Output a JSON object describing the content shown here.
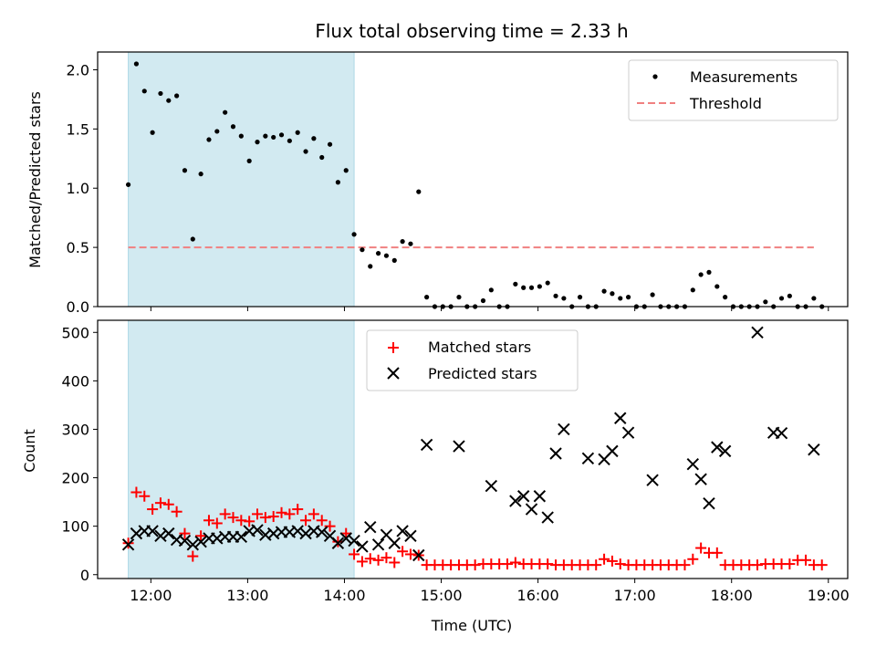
{
  "chart_data": [
    {
      "type": "scatter",
      "title": "Flux total observing time = 2.33 h",
      "xlabel": "",
      "ylabel": "Matched/Predicted stars",
      "xlim": [
        "11:27",
        "19:12"
      ],
      "ylim": [
        0,
        2.15
      ],
      "yticks": [
        0.0,
        0.5,
        1.0,
        1.5,
        2.0
      ],
      "ytick_labels": [
        "0.0",
        "0.5",
        "1.0",
        "1.5",
        "2.0"
      ],
      "shaded_interval": {
        "start": "11:46",
        "end": "14:06",
        "color": "#add8e6"
      },
      "legend": {
        "location": "upper right",
        "entries": [
          "Measurements",
          "Threshold"
        ]
      },
      "threshold": {
        "name": "Threshold",
        "value": 0.5,
        "x_range": [
          "11:46",
          "18:51"
        ],
        "color": "#f08080",
        "style": "dashed"
      },
      "series": [
        {
          "name": "Measurements",
          "color": "#000000",
          "points": [
            [
              "11:46",
              1.03
            ],
            [
              "11:51",
              2.05
            ],
            [
              "11:56",
              1.82
            ],
            [
              "12:01",
              1.47
            ],
            [
              "12:06",
              1.8
            ],
            [
              "12:11",
              1.74
            ],
            [
              "12:16",
              1.78
            ],
            [
              "12:21",
              1.15
            ],
            [
              "12:26",
              0.57
            ],
            [
              "12:31",
              1.12
            ],
            [
              "12:36",
              1.41
            ],
            [
              "12:41",
              1.48
            ],
            [
              "12:46",
              1.64
            ],
            [
              "12:51",
              1.52
            ],
            [
              "12:56",
              1.44
            ],
            [
              "13:01",
              1.23
            ],
            [
              "13:06",
              1.39
            ],
            [
              "13:11",
              1.44
            ],
            [
              "13:16",
              1.43
            ],
            [
              "13:21",
              1.45
            ],
            [
              "13:26",
              1.4
            ],
            [
              "13:31",
              1.47
            ],
            [
              "13:36",
              1.31
            ],
            [
              "13:41",
              1.42
            ],
            [
              "13:46",
              1.26
            ],
            [
              "13:51",
              1.37
            ],
            [
              "13:56",
              1.05
            ],
            [
              "14:01",
              1.15
            ],
            [
              "14:06",
              0.61
            ],
            [
              "14:11",
              0.48
            ],
            [
              "14:16",
              0.34
            ],
            [
              "14:21",
              0.45
            ],
            [
              "14:26",
              0.43
            ],
            [
              "14:31",
              0.39
            ],
            [
              "14:36",
              0.55
            ],
            [
              "14:41",
              0.53
            ],
            [
              "14:46",
              0.97
            ],
            [
              "14:51",
              0.08
            ],
            [
              "14:56",
              0.0
            ],
            [
              "15:01",
              0.0
            ],
            [
              "15:06",
              0.0
            ],
            [
              "15:11",
              0.08
            ],
            [
              "15:16",
              0.0
            ],
            [
              "15:21",
              0.0
            ],
            [
              "15:26",
              0.05
            ],
            [
              "15:31",
              0.14
            ],
            [
              "15:36",
              0.0
            ],
            [
              "15:41",
              0.0
            ],
            [
              "15:46",
              0.19
            ],
            [
              "15:51",
              0.16
            ],
            [
              "15:56",
              0.16
            ],
            [
              "16:01",
              0.17
            ],
            [
              "16:06",
              0.2
            ],
            [
              "16:11",
              0.09
            ],
            [
              "16:16",
              0.07
            ],
            [
              "16:21",
              0.0
            ],
            [
              "16:26",
              0.08
            ],
            [
              "16:31",
              0.0
            ],
            [
              "16:36",
              0.0
            ],
            [
              "16:41",
              0.13
            ],
            [
              "16:46",
              0.11
            ],
            [
              "16:51",
              0.07
            ],
            [
              "16:56",
              0.08
            ],
            [
              "17:01",
              0.0
            ],
            [
              "17:06",
              0.0
            ],
            [
              "17:11",
              0.1
            ],
            [
              "17:16",
              0.0
            ],
            [
              "17:21",
              0.0
            ],
            [
              "17:26",
              0.0
            ],
            [
              "17:31",
              0.0
            ],
            [
              "17:36",
              0.14
            ],
            [
              "17:41",
              0.27
            ],
            [
              "17:46",
              0.29
            ],
            [
              "17:51",
              0.17
            ],
            [
              "17:56",
              0.08
            ],
            [
              "18:01",
              0.0
            ],
            [
              "18:06",
              0.0
            ],
            [
              "18:11",
              0.0
            ],
            [
              "18:16",
              0.0
            ],
            [
              "18:21",
              0.04
            ],
            [
              "18:26",
              0.0
            ],
            [
              "18:31",
              0.07
            ],
            [
              "18:36",
              0.09
            ],
            [
              "18:41",
              0.0
            ],
            [
              "18:46",
              0.0
            ],
            [
              "18:51",
              0.07
            ],
            [
              "18:56",
              0.0
            ]
          ]
        }
      ]
    },
    {
      "type": "scatter",
      "title": "",
      "xlabel": "Time (UTC)",
      "ylabel": "Count",
      "xlim": [
        "11:27",
        "19:12"
      ],
      "ylim": [
        -8,
        525
      ],
      "xticks": [
        "12:00",
        "13:00",
        "14:00",
        "15:00",
        "16:00",
        "17:00",
        "18:00",
        "19:00"
      ],
      "xtick_labels": [
        "12:00",
        "13:00",
        "14:00",
        "15:00",
        "16:00",
        "17:00",
        "18:00",
        "19:00"
      ],
      "yticks": [
        0,
        100,
        200,
        300,
        400,
        500
      ],
      "ytick_labels": [
        "0",
        "100",
        "200",
        "300",
        "400",
        "500"
      ],
      "shaded_interval": {
        "start": "11:46",
        "end": "14:06",
        "color": "#add8e6"
      },
      "legend": {
        "location": "upper center",
        "entries": [
          "Matched stars",
          "Predicted stars"
        ]
      },
      "series": [
        {
          "name": "Matched stars",
          "color": "#ff0000",
          "marker": "+",
          "points": [
            [
              "11:46",
              65
            ],
            [
              "11:51",
              170
            ],
            [
              "11:56",
              162
            ],
            [
              "12:01",
              135
            ],
            [
              "12:06",
              148
            ],
            [
              "12:11",
              145
            ],
            [
              "12:16",
              130
            ],
            [
              "12:21",
              85
            ],
            [
              "12:26",
              38
            ],
            [
              "12:31",
              80
            ],
            [
              "12:36",
              112
            ],
            [
              "12:41",
              106
            ],
            [
              "12:46",
              125
            ],
            [
              "12:51",
              118
            ],
            [
              "12:56",
              112
            ],
            [
              "13:01",
              110
            ],
            [
              "13:06",
              125
            ],
            [
              "13:11",
              118
            ],
            [
              "13:16",
              120
            ],
            [
              "13:21",
              128
            ],
            [
              "13:26",
              125
            ],
            [
              "13:31",
              135
            ],
            [
              "13:36",
              112
            ],
            [
              "13:41",
              125
            ],
            [
              "13:46",
              112
            ],
            [
              "13:51",
              100
            ],
            [
              "13:56",
              68
            ],
            [
              "14:01",
              85
            ],
            [
              "14:06",
              42
            ],
            [
              "14:11",
              27
            ],
            [
              "14:16",
              33
            ],
            [
              "14:21",
              30
            ],
            [
              "14:26",
              35
            ],
            [
              "14:31",
              25
            ],
            [
              "14:36",
              48
            ],
            [
              "14:41",
              42
            ],
            [
              "14:46",
              40
            ],
            [
              "14:51",
              20
            ],
            [
              "14:56",
              20
            ],
            [
              "15:01",
              20
            ],
            [
              "15:06",
              20
            ],
            [
              "15:11",
              20
            ],
            [
              "15:16",
              20
            ],
            [
              "15:21",
              20
            ],
            [
              "15:26",
              22
            ],
            [
              "15:31",
              22
            ],
            [
              "15:36",
              22
            ],
            [
              "15:41",
              22
            ],
            [
              "15:46",
              25
            ],
            [
              "15:51",
              22
            ],
            [
              "15:56",
              22
            ],
            [
              "16:01",
              22
            ],
            [
              "16:06",
              22
            ],
            [
              "16:11",
              20
            ],
            [
              "16:16",
              20
            ],
            [
              "16:21",
              20
            ],
            [
              "16:26",
              20
            ],
            [
              "16:31",
              20
            ],
            [
              "16:36",
              20
            ],
            [
              "16:41",
              32
            ],
            [
              "16:46",
              28
            ],
            [
              "16:51",
              22
            ],
            [
              "16:56",
              20
            ],
            [
              "17:01",
              20
            ],
            [
              "17:06",
              20
            ],
            [
              "17:11",
              20
            ],
            [
              "17:16",
              20
            ],
            [
              "17:21",
              20
            ],
            [
              "17:26",
              20
            ],
            [
              "17:31",
              20
            ],
            [
              "17:36",
              32
            ],
            [
              "17:41",
              55
            ],
            [
              "17:46",
              45
            ],
            [
              "17:51",
              45
            ],
            [
              "17:56",
              20
            ],
            [
              "18:01",
              20
            ],
            [
              "18:06",
              20
            ],
            [
              "18:11",
              20
            ],
            [
              "18:16",
              20
            ],
            [
              "18:21",
              22
            ],
            [
              "18:26",
              22
            ],
            [
              "18:31",
              22
            ],
            [
              "18:36",
              22
            ],
            [
              "18:41",
              30
            ],
            [
              "18:46",
              30
            ],
            [
              "18:51",
              20
            ],
            [
              "18:56",
              20
            ]
          ]
        },
        {
          "name": "Predicted stars",
          "color": "#000000",
          "marker": "x",
          "points": [
            [
              "11:46",
              62
            ],
            [
              "11:51",
              85
            ],
            [
              "11:56",
              90
            ],
            [
              "12:01",
              90
            ],
            [
              "12:06",
              80
            ],
            [
              "12:11",
              85
            ],
            [
              "12:16",
              72
            ],
            [
              "12:21",
              70
            ],
            [
              "12:26",
              62
            ],
            [
              "12:31",
              68
            ],
            [
              "12:36",
              75
            ],
            [
              "12:41",
              75
            ],
            [
              "12:46",
              78
            ],
            [
              "12:51",
              78
            ],
            [
              "12:56",
              78
            ],
            [
              "13:01",
              90
            ],
            [
              "13:06",
              92
            ],
            [
              "13:11",
              82
            ],
            [
              "13:16",
              85
            ],
            [
              "13:21",
              88
            ],
            [
              "13:26",
              88
            ],
            [
              "13:31",
              90
            ],
            [
              "13:36",
              85
            ],
            [
              "13:41",
              90
            ],
            [
              "13:46",
              88
            ],
            [
              "13:51",
              80
            ],
            [
              "13:56",
              65
            ],
            [
              "14:01",
              75
            ],
            [
              "14:06",
              70
            ],
            [
              "14:11",
              58
            ],
            [
              "14:16",
              98
            ],
            [
              "14:21",
              62
            ],
            [
              "14:26",
              82
            ],
            [
              "14:31",
              65
            ],
            [
              "14:36",
              90
            ],
            [
              "14:41",
              80
            ],
            [
              "14:46",
              40
            ],
            [
              "14:51",
              268
            ],
            [
              "15:11",
              265
            ],
            [
              "15:31",
              183
            ],
            [
              "15:46",
              152
            ],
            [
              "15:51",
              162
            ],
            [
              "15:56",
              135
            ],
            [
              "16:01",
              162
            ],
            [
              "16:06",
              118
            ],
            [
              "16:11",
              250
            ],
            [
              "16:16",
              300
            ],
            [
              "16:31",
              240
            ],
            [
              "16:41",
              238
            ],
            [
              "16:46",
              255
            ],
            [
              "16:51",
              323
            ],
            [
              "16:56",
              293
            ],
            [
              "17:11",
              195
            ],
            [
              "17:36",
              228
            ],
            [
              "17:41",
              197
            ],
            [
              "17:46",
              147
            ],
            [
              "17:51",
              263
            ],
            [
              "17:56",
              255
            ],
            [
              "18:16",
              500
            ],
            [
              "18:26",
              293
            ],
            [
              "18:31",
              292
            ],
            [
              "18:51",
              258
            ]
          ]
        }
      ]
    }
  ]
}
